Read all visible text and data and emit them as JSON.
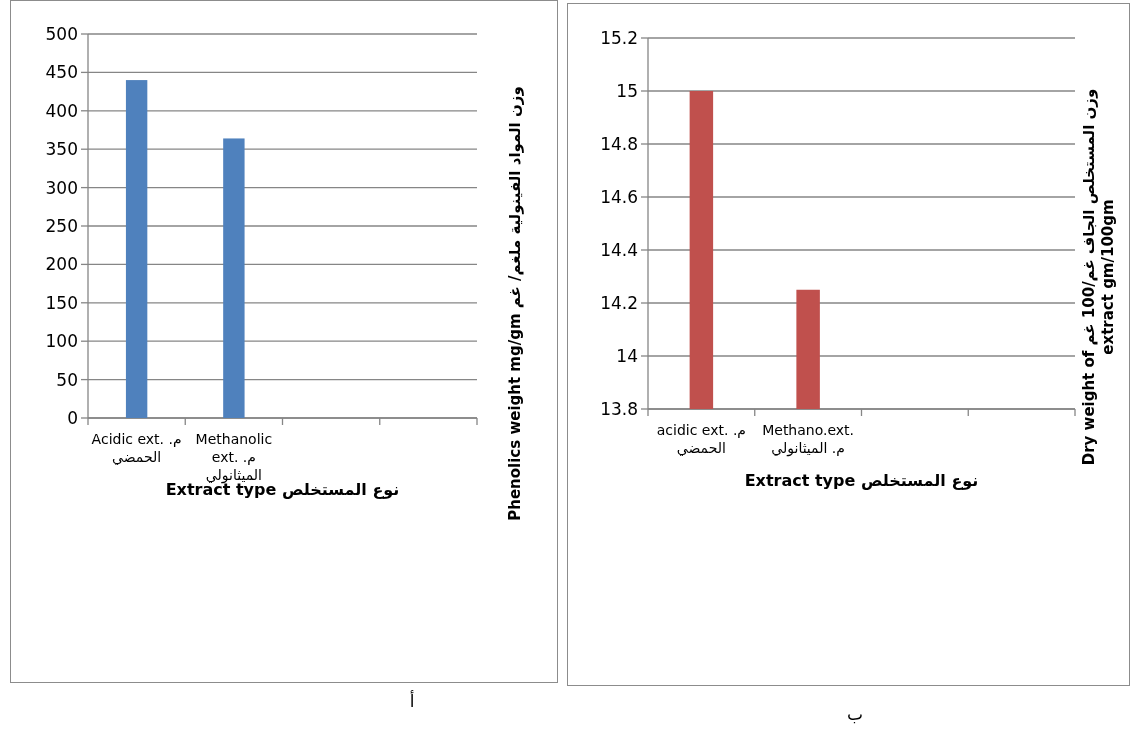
{
  "chart_data": [
    {
      "type": "bar",
      "categories": [
        "Acidic ext. م. الحمضي",
        "Methanolic ext. م. الميثانولي",
        null,
        null
      ],
      "values": [
        440,
        364,
        null,
        null
      ],
      "color": "#4f81bd",
      "ylim": [
        0,
        500
      ],
      "yticks": [
        0,
        50,
        100,
        150,
        200,
        250,
        300,
        350,
        400,
        450,
        500
      ],
      "grid": "y",
      "xlabel": "نوع المستخلص  Extract type",
      "ylabel": "وزن المواد الفينولية ملغم/ غم Phenolics weight mg/gm",
      "annotations": [
        "أ"
      ]
    },
    {
      "type": "bar",
      "categories": [
        "acidic ext. م. الحمضي",
        "Methano.ext. م. الميثانولي",
        null,
        null
      ],
      "values": [
        15.0,
        14.25,
        null,
        null
      ],
      "color": "#c0504d",
      "ylim": [
        13.8,
        15.2
      ],
      "yticks": [
        13.8,
        14,
        14.2,
        14.4,
        14.6,
        14.8,
        15,
        15.2
      ],
      "grid": "y",
      "xlabel": "نوع المستخلص  Extract type",
      "ylabel": "وزن المستخلص الجاف غم/100 غم Dry weight of extract gm/100gm",
      "annotations": [
        "ب"
      ]
    }
  ]
}
